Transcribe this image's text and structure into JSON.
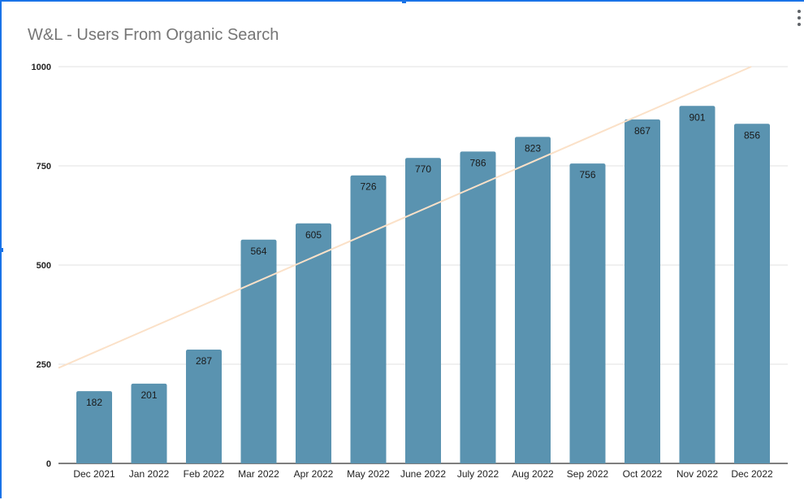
{
  "chart": {
    "title": "W&L - Users From Organic Search"
  },
  "icons": {
    "menu": "more-vert-icon"
  },
  "colors": {
    "bar": "#5a93b0",
    "trendline": "#fbe1c8",
    "gridline": "#e0e0e0",
    "selection": "#1a73e8"
  },
  "chart_data": {
    "type": "bar",
    "title": "W&L - Users From Organic Search",
    "xlabel": "",
    "ylabel": "",
    "categories": [
      "Dec 2021",
      "Jan 2022",
      "Feb 2022",
      "Mar 2022",
      "Apr 2022",
      "May 2022",
      "June 2022",
      "July 2022",
      "Aug 2022",
      "Sep 2022",
      "Oct 2022",
      "Nov 2022",
      "Dec 2022"
    ],
    "values": [
      182,
      201,
      287,
      564,
      605,
      726,
      770,
      786,
      823,
      756,
      867,
      901,
      856
    ],
    "ylim": [
      0,
      1000
    ],
    "yticks": [
      0,
      250,
      500,
      750,
      1000
    ],
    "grid": true,
    "legend": "none",
    "data_labels": true,
    "trendline": true
  }
}
